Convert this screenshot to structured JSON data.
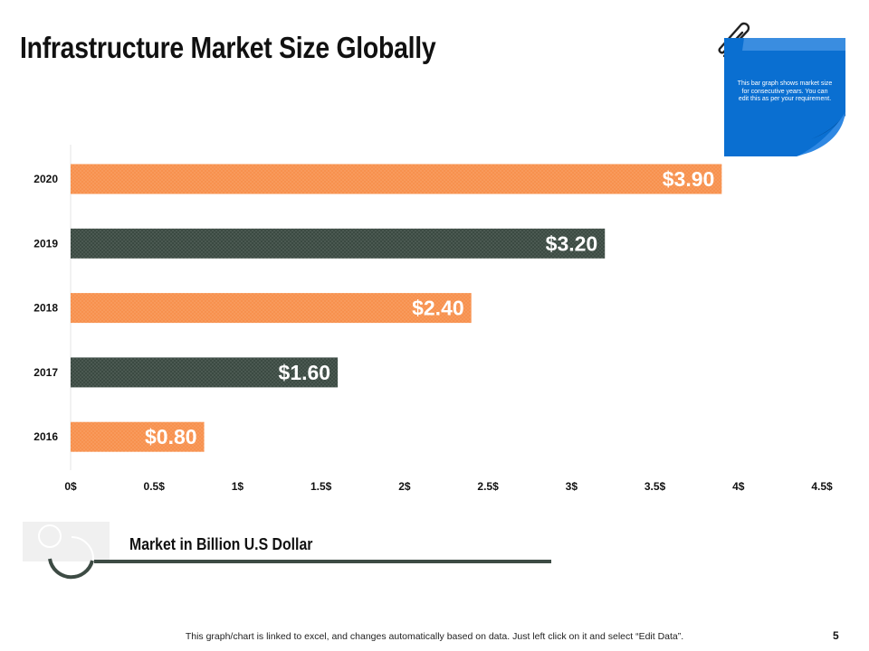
{
  "slide": {
    "title": "Infrastructure Market Size Globally",
    "page_number": "5",
    "footer_note": "This graph/chart is linked to excel,  and changes automatically based on data. Just left click on it and select “Edit Data”."
  },
  "sticky_note": {
    "text": "This bar graph shows market size for consecutive years. You can edit this as per your requirement.",
    "color": "#0a6fd1"
  },
  "legend": {
    "label": "Market in Billion U.S Dollar"
  },
  "colors": {
    "orange": "#f7914e",
    "dark_green": "#3b4a42",
    "axis_text": "#111111"
  },
  "chart_data": {
    "type": "bar",
    "orientation": "horizontal",
    "categories": [
      "2020",
      "2019",
      "2018",
      "2017",
      "2016"
    ],
    "values": [
      3.9,
      3.2,
      2.4,
      1.6,
      0.8
    ],
    "data_labels": [
      "$3.90",
      "$3.20",
      "$2.40",
      "$1.60",
      "$0.80"
    ],
    "bar_colors": [
      "#f7914e",
      "#3b4a42",
      "#f7914e",
      "#3b4a42",
      "#f7914e"
    ],
    "xlim": [
      0,
      4.5
    ],
    "xticks": [
      0,
      0.5,
      1,
      1.5,
      2,
      2.5,
      3,
      3.5,
      4,
      4.5
    ],
    "xtick_labels": [
      "0$",
      "0.5$",
      "1$",
      "1.5$",
      "2$",
      "2.5$",
      "3$",
      "3.5$",
      "4$",
      "4.5$"
    ],
    "title": "",
    "xlabel": "",
    "ylabel": "",
    "grid": false,
    "legend": "bottom-left"
  }
}
